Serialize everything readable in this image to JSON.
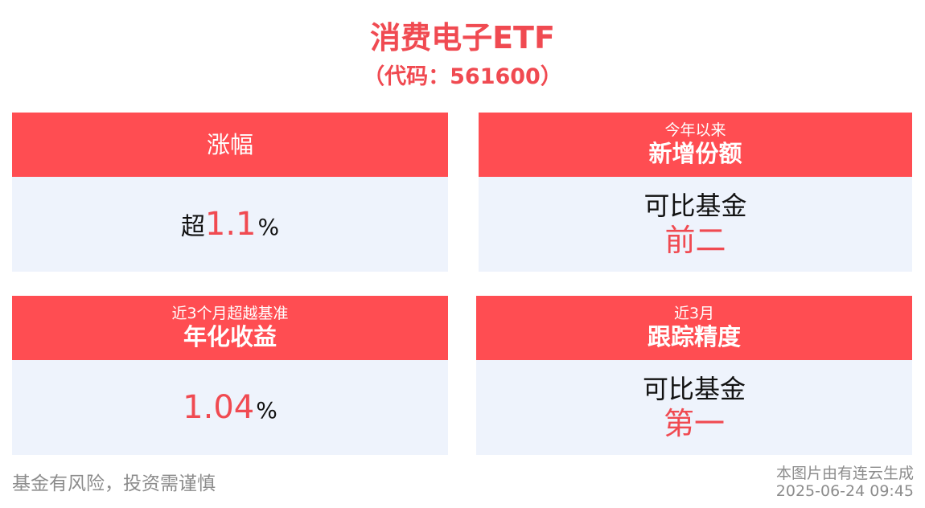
{
  "header": {
    "title": "消费电子ETF",
    "subtitle": "（代码：561600）"
  },
  "cards": [
    {
      "head_title": "涨幅",
      "value_prefix": "超",
      "value_number": "1.1",
      "value_unit": "%"
    },
    {
      "head_small": "今年以来",
      "head_title": "新增份额",
      "body_line1": "可比基金",
      "body_line2": "前二"
    },
    {
      "head_small": "近3个月超越基准",
      "head_title": "年化收益",
      "value_number": "1.04",
      "value_unit": "%"
    },
    {
      "head_small": "近3月",
      "head_title": "跟踪精度",
      "body_line1": "可比基金",
      "body_line2": "第一"
    }
  ],
  "footer": {
    "disclaimer": "基金有风险，投资需谨慎",
    "source": "本图片由有连云生成",
    "timestamp": "2025-06-24 09:45"
  },
  "colors": {
    "accent_red": "#ff4d52",
    "text_red": "#f04a51",
    "card_body_bg": "#eef3fc",
    "footer_gray": "#8c8c8c"
  }
}
